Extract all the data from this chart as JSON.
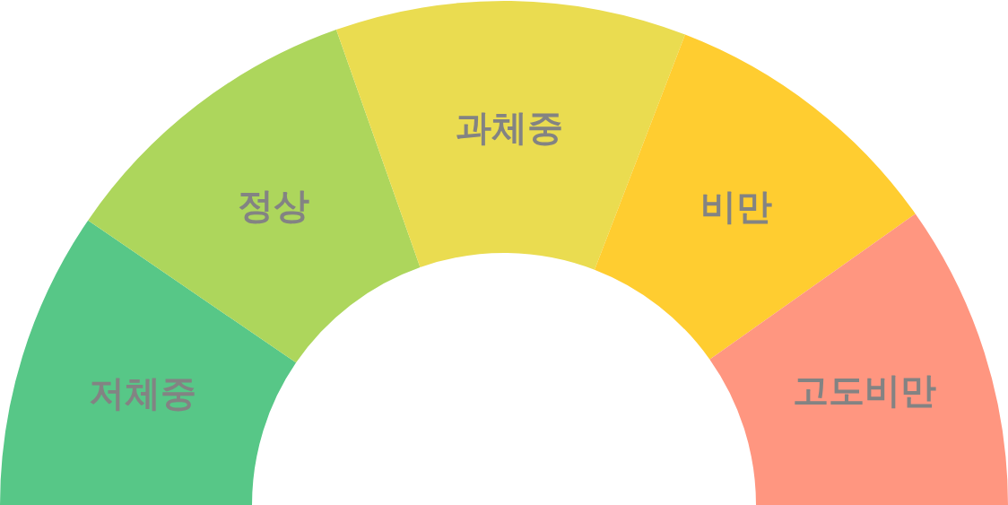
{
  "chart_data": {
    "type": "donut",
    "categories": [
      "저체중",
      "정상",
      "과체중",
      "비만",
      "고도비만"
    ],
    "values": [
      19.1,
      20.1,
      22.5,
      18.7,
      19.6
    ],
    "colors": [
      "#57c787",
      "#add65c",
      "#eadc50",
      "#ffcd30",
      "#ff9680"
    ]
  }
}
